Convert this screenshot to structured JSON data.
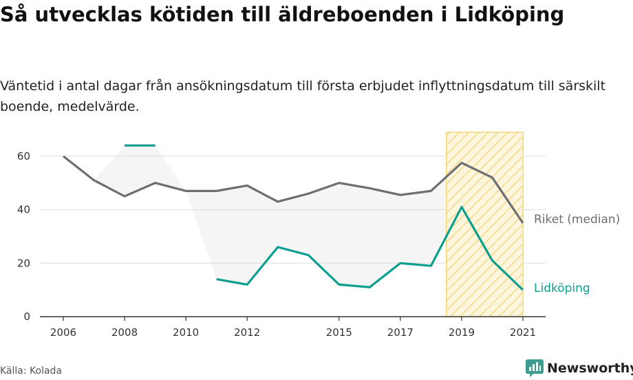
{
  "header": {
    "title": "Så utvecklas kötiden till äldreboenden i Lidköping",
    "subtitle": "Väntetid i antal dagar från ansökningsdatum till första erbjudet inflyttningsdatum till särskilt boende, medelvärde."
  },
  "footer": {
    "source": "Källa: Kolada",
    "brand": "Newsworthy"
  },
  "colors": {
    "riket": "#6d6d72",
    "lidkoping": "#0a9e8f",
    "highlight": "#f3cf6b",
    "band": "#f5f5f5",
    "grid": "#dcdcdc"
  },
  "chart_data": {
    "type": "line",
    "x": [
      2006,
      2007,
      2008,
      2009,
      2010,
      2011,
      2012,
      2013,
      2014,
      2015,
      2016,
      2017,
      2018,
      2019,
      2020,
      2021
    ],
    "x_tick_labels": [
      "2006",
      "2008",
      "2010",
      "2012",
      "2015",
      "2017",
      "2019",
      "2021"
    ],
    "y_ticks": [
      0,
      20,
      40,
      60
    ],
    "ylim": [
      0,
      70
    ],
    "xlim": [
      2006,
      2021
    ],
    "grid": true,
    "highlight_range": [
      2018.5,
      2021
    ],
    "series": [
      {
        "name": "Riket (median)",
        "color": "#6d6d72",
        "values": [
          60,
          51,
          45,
          50,
          47,
          47,
          49,
          43,
          46,
          50,
          48,
          45.5,
          47,
          57.5,
          52,
          35
        ]
      },
      {
        "name": "Lidköping",
        "color": "#0a9e8f",
        "values": [
          null,
          null,
          64,
          64,
          null,
          14,
          12,
          26,
          23,
          12,
          11,
          20,
          19,
          41,
          21,
          10
        ]
      }
    ]
  }
}
